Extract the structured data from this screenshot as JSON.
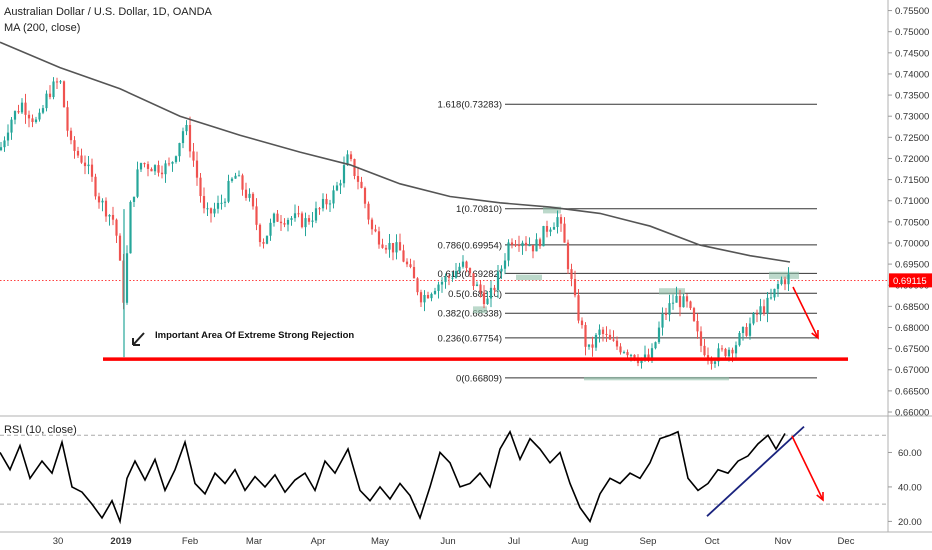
{
  "header": {
    "symbol_title": "Australian Dollar / U.S. Dollar, 1D, OANDA",
    "indicator_ma": "MA (200, close)",
    "indicator_rsi": "RSI (10, close)"
  },
  "colors": {
    "up_candle": "#26a69a",
    "down_candle": "#ef5350",
    "ma_line": "#555555",
    "support_line": "#ff0000",
    "arrow": "#ff0000",
    "trendline": "#1a237e",
    "highlight_box": "#8fbfa8",
    "last_price": "#ff0000"
  },
  "chart_data": [
    {
      "type": "candlestick",
      "title": "Australian Dollar / U.S. Dollar, 1D, OANDA",
      "yaxis": {
        "position": "right",
        "ticks": [
          "0.75500",
          "0.75000",
          "0.74500",
          "0.74000",
          "0.73500",
          "0.73000",
          "0.72500",
          "0.72000",
          "0.71500",
          "0.71000",
          "0.70500",
          "0.70000",
          "0.69500",
          "0.69000",
          "0.68500",
          "0.68000",
          "0.67500",
          "0.67000",
          "0.66500",
          "0.66000"
        ],
        "range": [
          0.66,
          0.7575
        ]
      },
      "xaxis": {
        "tick_labels": [
          "30",
          "2019",
          "Feb",
          "Mar",
          "Apr",
          "May",
          "Jun",
          "Jul",
          "Aug",
          "Sep",
          "Oct",
          "Nov",
          "Dec"
        ]
      },
      "last_price": {
        "value": 0.69115,
        "label": "0.69115"
      },
      "price_path": [
        [
          0,
          0.722
        ],
        [
          10,
          0.729
        ],
        [
          22,
          0.733
        ],
        [
          38,
          0.728
        ],
        [
          48,
          0.7355
        ],
        [
          60,
          0.7385
        ],
        [
          70,
          0.723
        ],
        [
          85,
          0.719
        ],
        [
          100,
          0.71
        ],
        [
          115,
          0.705
        ],
        [
          124,
          0.686
        ],
        [
          130,
          0.708
        ],
        [
          140,
          0.719
        ],
        [
          155,
          0.718
        ],
        [
          170,
          0.718
        ],
        [
          185,
          0.728
        ],
        [
          195,
          0.718
        ],
        [
          205,
          0.706
        ],
        [
          220,
          0.709
        ],
        [
          235,
          0.716
        ],
        [
          250,
          0.71
        ],
        [
          262,
          0.7
        ],
        [
          275,
          0.706
        ],
        [
          290,
          0.706
        ],
        [
          305,
          0.705
        ],
        [
          320,
          0.708
        ],
        [
          335,
          0.712
        ],
        [
          348,
          0.72
        ],
        [
          360,
          0.714
        ],
        [
          372,
          0.703
        ],
        [
          385,
          0.7
        ],
        [
          400,
          0.698
        ],
        [
          412,
          0.692
        ],
        [
          422,
          0.687
        ],
        [
          435,
          0.69
        ],
        [
          450,
          0.692
        ],
        [
          462,
          0.695
        ],
        [
          475,
          0.69
        ],
        [
          488,
          0.686
        ],
        [
          500,
          0.693
        ],
        [
          510,
          0.701
        ],
        [
          522,
          0.701
        ],
        [
          535,
          0.699
        ],
        [
          548,
          0.704
        ],
        [
          558,
          0.706
        ],
        [
          565,
          0.699
        ],
        [
          575,
          0.686
        ],
        [
          588,
          0.674
        ],
        [
          600,
          0.679
        ],
        [
          612,
          0.676
        ],
        [
          625,
          0.675
        ],
        [
          638,
          0.673
        ],
        [
          650,
          0.672
        ],
        [
          662,
          0.682
        ],
        [
          675,
          0.687
        ],
        [
          688,
          0.685
        ],
        [
          700,
          0.676
        ],
        [
          712,
          0.673
        ],
        [
          722,
          0.674
        ],
        [
          735,
          0.676
        ],
        [
          748,
          0.68
        ],
        [
          760,
          0.684
        ],
        [
          770,
          0.686
        ],
        [
          780,
          0.691
        ],
        [
          790,
          0.692
        ]
      ],
      "ma200": {
        "name": "MA (200, close)",
        "path": [
          [
            0,
            0.7475
          ],
          [
            60,
            0.7415
          ],
          [
            120,
            0.7365
          ],
          [
            180,
            0.73
          ],
          [
            240,
            0.7255
          ],
          [
            300,
            0.7215
          ],
          [
            350,
            0.7185
          ],
          [
            400,
            0.714
          ],
          [
            450,
            0.711
          ],
          [
            500,
            0.7095
          ],
          [
            550,
            0.7085
          ],
          [
            600,
            0.707
          ],
          [
            650,
            0.704
          ],
          [
            700,
            0.6995
          ],
          [
            750,
            0.697
          ],
          [
            790,
            0.6955
          ]
        ]
      },
      "fibonacci": [
        {
          "level": "1.618",
          "value": 0.73283,
          "label": "1.618(0.73283)"
        },
        {
          "level": "1",
          "value": 0.7081,
          "label": "1(0.70810)"
        },
        {
          "level": "0.786",
          "value": 0.69954,
          "label": "0.786(0.69954)"
        },
        {
          "level": "0.618",
          "value": 0.69282,
          "label": "0.618(0.69282)"
        },
        {
          "level": "0.5",
          "value": 0.6881,
          "label": "0.5(0.68810)"
        },
        {
          "level": "0.382",
          "value": 0.68338,
          "label": "0.382(0.68338)"
        },
        {
          "level": "0.236",
          "value": 0.67754,
          "label": "0.236(0.67754)"
        },
        {
          "level": "0",
          "value": 0.66809,
          "label": "0(0.66809)"
        }
      ],
      "support_level": {
        "value": 0.673,
        "annotation": "Important Area Of Extreme Strong Rejection"
      }
    },
    {
      "type": "line",
      "name": "RSI (10, close)",
      "yaxis": {
        "position": "right",
        "ticks": [
          "60.00",
          "40.00",
          "20.00"
        ],
        "range": [
          15,
          80
        ],
        "dashed_levels": [
          70,
          30
        ]
      },
      "values": [
        [
          0,
          60
        ],
        [
          10,
          50
        ],
        [
          20,
          64
        ],
        [
          30,
          45
        ],
        [
          42,
          55
        ],
        [
          52,
          48
        ],
        [
          62,
          66
        ],
        [
          72,
          40
        ],
        [
          82,
          37
        ],
        [
          92,
          30
        ],
        [
          102,
          22
        ],
        [
          112,
          32
        ],
        [
          120,
          20
        ],
        [
          127,
          45
        ],
        [
          135,
          55
        ],
        [
          145,
          44
        ],
        [
          155,
          56
        ],
        [
          165,
          38
        ],
        [
          175,
          50
        ],
        [
          185,
          66
        ],
        [
          195,
          42
        ],
        [
          205,
          36
        ],
        [
          215,
          48
        ],
        [
          225,
          42
        ],
        [
          235,
          50
        ],
        [
          245,
          38
        ],
        [
          255,
          46
        ],
        [
          265,
          40
        ],
        [
          275,
          47
        ],
        [
          285,
          37
        ],
        [
          295,
          44
        ],
        [
          305,
          48
        ],
        [
          315,
          38
        ],
        [
          325,
          55
        ],
        [
          335,
          48
        ],
        [
          348,
          62
        ],
        [
          360,
          38
        ],
        [
          370,
          32
        ],
        [
          380,
          40
        ],
        [
          390,
          33
        ],
        [
          400,
          42
        ],
        [
          410,
          35
        ],
        [
          420,
          22
        ],
        [
          430,
          40
        ],
        [
          440,
          60
        ],
        [
          450,
          54
        ],
        [
          460,
          40
        ],
        [
          470,
          42
        ],
        [
          480,
          48
        ],
        [
          490,
          40
        ],
        [
          500,
          62
        ],
        [
          510,
          72
        ],
        [
          520,
          56
        ],
        [
          530,
          68
        ],
        [
          540,
          62
        ],
        [
          550,
          54
        ],
        [
          560,
          60
        ],
        [
          570,
          42
        ],
        [
          580,
          28
        ],
        [
          590,
          20
        ],
        [
          600,
          36
        ],
        [
          610,
          45
        ],
        [
          620,
          42
        ],
        [
          630,
          48
        ],
        [
          640,
          45
        ],
        [
          650,
          54
        ],
        [
          660,
          68
        ],
        [
          670,
          70
        ],
        [
          678,
          72
        ],
        [
          688,
          45
        ],
        [
          698,
          38
        ],
        [
          708,
          42
        ],
        [
          718,
          50
        ],
        [
          728,
          48
        ],
        [
          738,
          55
        ],
        [
          748,
          58
        ],
        [
          758,
          65
        ],
        [
          768,
          70
        ],
        [
          776,
          62
        ],
        [
          785,
          71
        ]
      ],
      "trendline_name": "rising support"
    }
  ]
}
